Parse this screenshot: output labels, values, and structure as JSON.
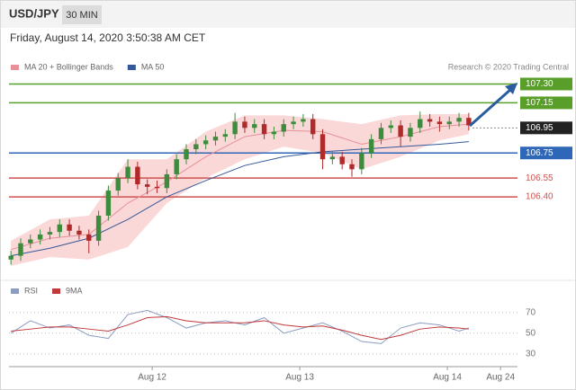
{
  "header": {
    "symbol": "USD/JPY",
    "interval": "30 MIN",
    "timestamp": "Friday, August 14, 2020 3:50:38 AM CET",
    "credit": "Research © 2020 Trading Central"
  },
  "chart_data": [
    {
      "type": "candlestick",
      "up_color": "#3d8b3d",
      "down_color": "#b02a2a",
      "xlim": [
        -0.2,
        52
      ],
      "ylim": [
        105.82,
        107.54
      ],
      "open": [
        105.9,
        105.93,
        106.03,
        106.06,
        106.1,
        106.12,
        106.18,
        106.13,
        106.1,
        106.05,
        106.25,
        106.45,
        106.55,
        106.64,
        106.5,
        106.48,
        106.47,
        106.58,
        106.7,
        106.78,
        106.82,
        106.85,
        106.88,
        106.9,
        107.0,
        106.95,
        106.98,
        106.9,
        106.92,
        106.98,
        107.0,
        107.02,
        106.9,
        106.7,
        106.72,
        106.66,
        106.62,
        106.75,
        106.86,
        106.95,
        106.97,
        106.88,
        106.95,
        107.02,
        107.0,
        106.98,
        107.0,
        107.03
      ],
      "high": [
        105.97,
        106.07,
        106.1,
        106.14,
        106.16,
        106.22,
        106.22,
        106.17,
        106.14,
        106.29,
        106.49,
        106.59,
        106.7,
        106.68,
        106.54,
        106.53,
        106.62,
        106.74,
        106.82,
        106.86,
        106.89,
        106.92,
        106.94,
        107.07,
        107.04,
        107.02,
        107.02,
        106.96,
        107.02,
        107.04,
        107.06,
        107.06,
        106.94,
        106.76,
        106.76,
        106.7,
        106.79,
        106.9,
        106.99,
        107.01,
        107.01,
        106.99,
        107.08,
        107.06,
        107.04,
        107.04,
        107.07,
        107.07
      ],
      "low": [
        105.86,
        105.89,
        105.99,
        106.02,
        106.06,
        106.08,
        106.09,
        106.06,
        105.95,
        106.01,
        106.21,
        106.41,
        106.51,
        106.46,
        106.42,
        106.43,
        106.43,
        106.54,
        106.66,
        106.74,
        106.78,
        106.81,
        106.84,
        106.86,
        106.91,
        106.91,
        106.86,
        106.86,
        106.88,
        106.94,
        106.96,
        106.86,
        106.62,
        106.66,
        106.62,
        106.56,
        106.58,
        106.71,
        106.82,
        106.91,
        106.8,
        106.84,
        106.91,
        106.96,
        106.92,
        106.94,
        106.96,
        106.93
      ],
      "close": [
        105.93,
        106.03,
        106.06,
        106.1,
        106.12,
        106.18,
        106.13,
        106.1,
        106.05,
        106.25,
        106.45,
        106.55,
        106.64,
        106.5,
        106.48,
        106.47,
        106.58,
        106.7,
        106.78,
        106.82,
        106.85,
        106.88,
        106.9,
        107.0,
        106.95,
        106.98,
        106.9,
        106.92,
        106.98,
        107.0,
        107.02,
        106.9,
        106.7,
        106.72,
        106.66,
        106.62,
        106.75,
        106.86,
        106.95,
        106.97,
        106.88,
        106.95,
        107.02,
        107.0,
        106.98,
        107.0,
        107.03,
        106.97
      ],
      "bollinger": {
        "color": "#fbd8d8",
        "x": [
          0,
          4,
          8,
          12,
          16,
          20,
          24,
          28,
          32,
          36,
          40,
          44,
          47
        ],
        "upper": [
          106.05,
          106.22,
          106.25,
          106.7,
          106.7,
          106.92,
          107.05,
          107.05,
          107.02,
          106.98,
          107.05,
          107.06,
          107.06
        ],
        "lower": [
          105.85,
          105.92,
          105.9,
          106.0,
          106.35,
          106.55,
          106.7,
          106.8,
          106.75,
          106.62,
          106.72,
          106.85,
          106.9
        ]
      },
      "series": [
        {
          "name": "MA 20 + Bollinger Bands",
          "color": "#e8909a",
          "x": [
            0,
            4,
            8,
            12,
            16,
            20,
            24,
            28,
            32,
            36,
            40,
            44,
            47
          ],
          "values": [
            105.98,
            106.07,
            106.1,
            106.35,
            106.52,
            106.72,
            106.88,
            106.93,
            106.92,
            106.82,
            106.88,
            106.96,
            106.98
          ]
        },
        {
          "name": "MA 50",
          "color": "#34589a",
          "x": [
            0,
            4,
            8,
            12,
            16,
            20,
            24,
            28,
            32,
            36,
            40,
            44,
            47
          ],
          "values": [
            105.93,
            105.99,
            106.07,
            106.22,
            106.4,
            106.53,
            106.65,
            106.72,
            106.76,
            106.78,
            106.8,
            106.82,
            106.84
          ]
        }
      ],
      "levels": [
        {
          "value": 107.3,
          "label": "107.30",
          "color": "#5a9e2a",
          "filled": true,
          "dashed": false
        },
        {
          "value": 107.15,
          "label": "107.15",
          "color": "#5a9e2a",
          "filled": true,
          "dashed": false
        },
        {
          "value": 106.95,
          "label": "106.95",
          "color": "#222222",
          "filled": true,
          "dashed": true
        },
        {
          "value": 106.75,
          "label": "106.75",
          "color": "#2f67b8",
          "filled": true,
          "dashed": false
        },
        {
          "value": 106.55,
          "label": "106.55",
          "color": "#d05050",
          "filled": false,
          "dashed": false
        },
        {
          "value": 106.4,
          "label": "106.40",
          "color": "#d05050",
          "filled": false,
          "dashed": false
        }
      ]
    },
    {
      "type": "line",
      "xlim": [
        -0.2,
        52
      ],
      "ylim": [
        23,
        81
      ],
      "yticks": [
        30,
        50,
        70
      ],
      "grid": true,
      "xticks": [
        {
          "value": 14.5,
          "label": "Aug 12"
        },
        {
          "value": 29.65,
          "label": "Aug 13"
        },
        {
          "value": 44.8,
          "label": "Aug 14"
        },
        {
          "value": 50.26,
          "label": "Aug 24"
        }
      ],
      "series": [
        {
          "name": "RSI",
          "color": "#8a9cc0",
          "x": [
            0,
            2,
            4,
            6,
            8,
            10,
            12,
            14,
            16,
            18,
            20,
            22,
            24,
            26,
            28,
            30,
            32,
            34,
            36,
            38,
            40,
            42,
            44,
            46,
            47
          ],
          "values": [
            50,
            62,
            55,
            58,
            48,
            45,
            68,
            72,
            65,
            55,
            60,
            62,
            58,
            65,
            50,
            55,
            60,
            52,
            42,
            40,
            55,
            60,
            58,
            52,
            55
          ]
        },
        {
          "name": "9MA",
          "color": "#c0393b",
          "x": [
            0,
            2,
            4,
            6,
            8,
            10,
            12,
            14,
            16,
            18,
            20,
            22,
            24,
            26,
            28,
            30,
            32,
            34,
            36,
            38,
            40,
            42,
            44,
            46,
            47
          ],
          "values": [
            52,
            54,
            56,
            56,
            54,
            52,
            58,
            65,
            66,
            62,
            60,
            60,
            60,
            62,
            58,
            56,
            57,
            53,
            48,
            44,
            48,
            54,
            56,
            55,
            54
          ]
        }
      ]
    }
  ]
}
